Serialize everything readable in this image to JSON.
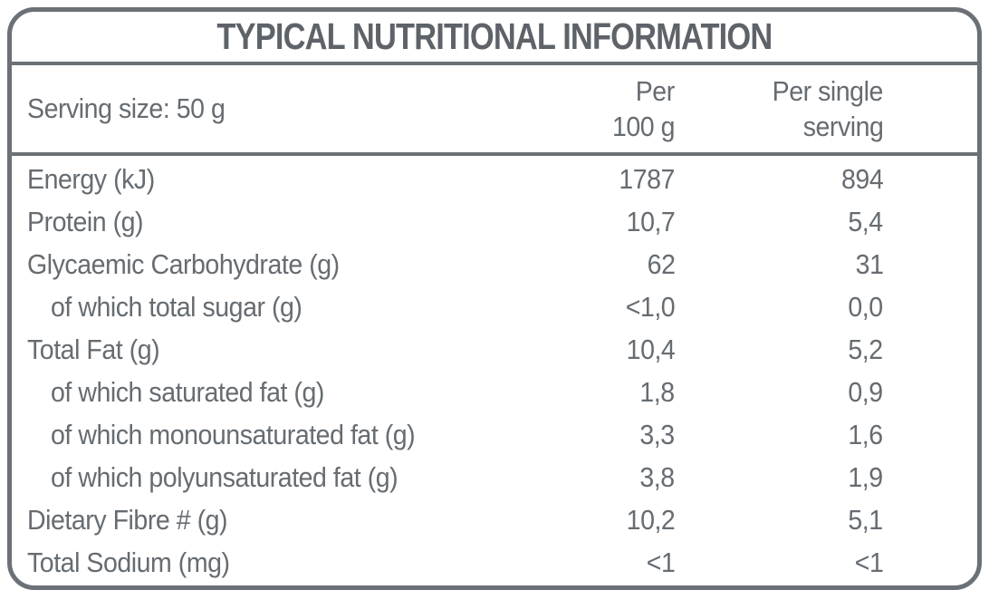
{
  "label": {
    "title": "TYPICAL NUTRITIONAL INFORMATION",
    "serving_size": "Serving size: 50 g",
    "columns": {
      "per100": [
        "Per",
        "100 g"
      ],
      "per_serving": [
        "Per single",
        "serving"
      ]
    },
    "rows": [
      {
        "label": "Energy (kJ)",
        "indent": false,
        "per_100g": "1787",
        "per_serving": "894"
      },
      {
        "label": "Protein (g)",
        "indent": false,
        "per_100g": "10,7",
        "per_serving": "5,4"
      },
      {
        "label": "Glycaemic Carbohydrate (g)",
        "indent": false,
        "per_100g": "62",
        "per_serving": "31"
      },
      {
        "label": "of which total sugar (g)",
        "indent": true,
        "per_100g": "<1,0",
        "per_serving": "0,0"
      },
      {
        "label": "Total Fat (g)",
        "indent": false,
        "per_100g": "10,4",
        "per_serving": "5,2"
      },
      {
        "label": "of which saturated fat (g)",
        "indent": true,
        "per_100g": "1,8",
        "per_serving": "0,9"
      },
      {
        "label": "of which monounsaturated fat (g)",
        "indent": true,
        "per_100g": "3,3",
        "per_serving": "1,6"
      },
      {
        "label": "of which polyunsaturated fat (g)",
        "indent": true,
        "per_100g": "3,8",
        "per_serving": "1,9"
      },
      {
        "label": "Dietary Fibre # (g)",
        "indent": false,
        "per_100g": "10,2",
        "per_serving": "5,1"
      },
      {
        "label": "Total Sodium (mg)",
        "indent": false,
        "per_100g": "<1",
        "per_serving": "<1"
      }
    ],
    "colors": {
      "text": "#666c71",
      "title": "#5d6368",
      "border": "#6b7176",
      "background": "#ffffff"
    }
  }
}
